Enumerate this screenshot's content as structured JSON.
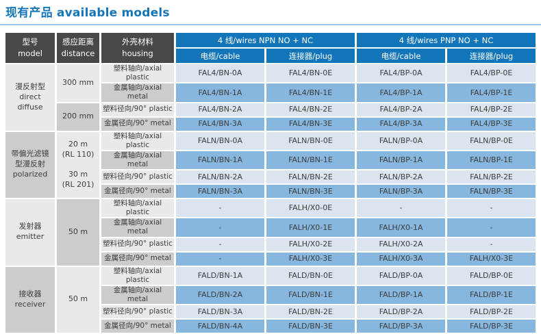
{
  "page": {
    "title": "现有产品 available models"
  },
  "colors": {
    "accent": "#1476ba",
    "header_dark": "#48484a",
    "header_blue": "#1476ba",
    "row_light": "#dbe4ef",
    "row_medium": "#87b7de",
    "gray_light": "#e9e9e9",
    "gray_dark": "#cccccc"
  },
  "table": {
    "header": {
      "model": [
        "型号",
        "model"
      ],
      "distance": [
        "感应距离",
        "distance"
      ],
      "housing": [
        "外壳材料",
        "housing"
      ],
      "npn": "4 线/wires NPN NO + NC",
      "pnp": "4 线/wires PNP NO + NC",
      "cable": "电缆/cable",
      "plug": "连接器/plug"
    },
    "groups": [
      {
        "model_lines": [
          "漫反射型",
          "direct diffuse"
        ],
        "model_shade": "light",
        "distance_cells": [
          {
            "lines": [
              "300 mm"
            ],
            "rowspan": 2,
            "shade": "light"
          },
          {
            "lines": [
              "200 mm"
            ],
            "rowspan": 2,
            "shade": "dark"
          }
        ],
        "rows": [
          {
            "housing": "塑料轴向/axial plastic",
            "cells": [
              "FAL4/BN-0A",
              "FAL4/BN-0E",
              "FAL4/BP-0A",
              "FAL4/BP-0E"
            ]
          },
          {
            "housing": "金属轴向/axial metal",
            "cells": [
              "FAL4/BN-1A",
              "FAL4/BN-1E",
              "FAL4/BP-1A",
              "FAL4/BP-1E"
            ]
          },
          {
            "housing": "塑料径向/90° plastic",
            "cells": [
              "FAL4/BN-2A",
              "FAL4/BN-2E",
              "FAL4/BP-2A",
              "FAL4/BP-2E"
            ]
          },
          {
            "housing": "金属径向/90° metal",
            "cells": [
              "FAL4/BN-3A",
              "FAL4/BN-3E",
              "FAL4/BP-3A",
              "FAL4/BP-3E"
            ]
          }
        ]
      },
      {
        "model_lines": [
          "带偏光滤镜",
          "型漫反射",
          "polarized"
        ],
        "model_shade": "dark",
        "distance_cells": [
          {
            "lines": [
              "20 m",
              "(RL 110)",
              "",
              "30 m",
              "(RL 201)"
            ],
            "rowspan": 4,
            "shade": "light"
          }
        ],
        "rows": [
          {
            "housing": "塑料轴向/axial plastic",
            "cells": [
              "FALN/BN-0A",
              "FALN/BN-0E",
              "FALN/BP-0A",
              "FALN/BP-0E"
            ]
          },
          {
            "housing": "金属轴向/axial metal",
            "cells": [
              "FALN/BN-1A",
              "FALN/BN-1E",
              "FALN/BP-1A",
              "FALN/BP-1E"
            ]
          },
          {
            "housing": "塑料径向/90° plastic",
            "cells": [
              "FALN/BN-2A",
              "FALN/BN-2E",
              "FALN/BP-2A",
              "FALN/BP-2E"
            ]
          },
          {
            "housing": "金属径向/90° metal",
            "cells": [
              "FALN/BN-3A",
              "FALN/BN-3E",
              "FALN/BP-3A",
              "FALN/BP-3E"
            ]
          }
        ]
      },
      {
        "model_lines": [
          "发射器",
          "emitter"
        ],
        "model_shade": "light",
        "distance_cells": [
          {
            "lines": [
              "50 m"
            ],
            "rowspan": 4,
            "shade": "dark"
          }
        ],
        "rows": [
          {
            "housing": "塑料轴向/axial plastic",
            "cells": [
              "-",
              "FALH/X0-0E",
              "-",
              "-"
            ]
          },
          {
            "housing": "金属轴向/axial metal",
            "cells": [
              "-",
              "FALH/X0-1E",
              "FALH/X0-1A",
              "-"
            ]
          },
          {
            "housing": "塑料径向/90° plastic",
            "cells": [
              "-",
              "FALH/X0-2E",
              "FALH/X0-2A",
              "-"
            ]
          },
          {
            "housing": "金属径向/90° metal",
            "cells": [
              "-",
              "FALH/X0-3E",
              "FALH/X0-3A",
              "FALH/X0-3E"
            ]
          }
        ]
      },
      {
        "model_lines": [
          "接收器",
          "receiver"
        ],
        "model_shade": "dark",
        "distance_cells": [
          {
            "lines": [
              "50 m"
            ],
            "rowspan": 4,
            "shade": "light"
          }
        ],
        "rows": [
          {
            "housing": "塑料轴向/axial plastic",
            "cells": [
              "FALD/BN-1A",
              "FALD/BN-0E",
              "FALD/BP-0A",
              "FALD/BP-0E"
            ]
          },
          {
            "housing": "金属轴向/axial metal",
            "cells": [
              "FALD/BN-2A",
              "FALD/BN-1E",
              "FALD/BP-1A",
              "FALD/BP-1E"
            ]
          },
          {
            "housing": "塑料径向/90° plastic",
            "cells": [
              "FALD/BN-3A",
              "FALD/BN-2E",
              "FALD/BP-2A",
              "FALD/BP-2E"
            ]
          },
          {
            "housing": "金属径向/90° metal",
            "cells": [
              "FALD/BN-4A",
              "FALD/BN-3E",
              "FALD/BP-3A",
              "FALD/BP-3E"
            ]
          }
        ]
      }
    ]
  }
}
